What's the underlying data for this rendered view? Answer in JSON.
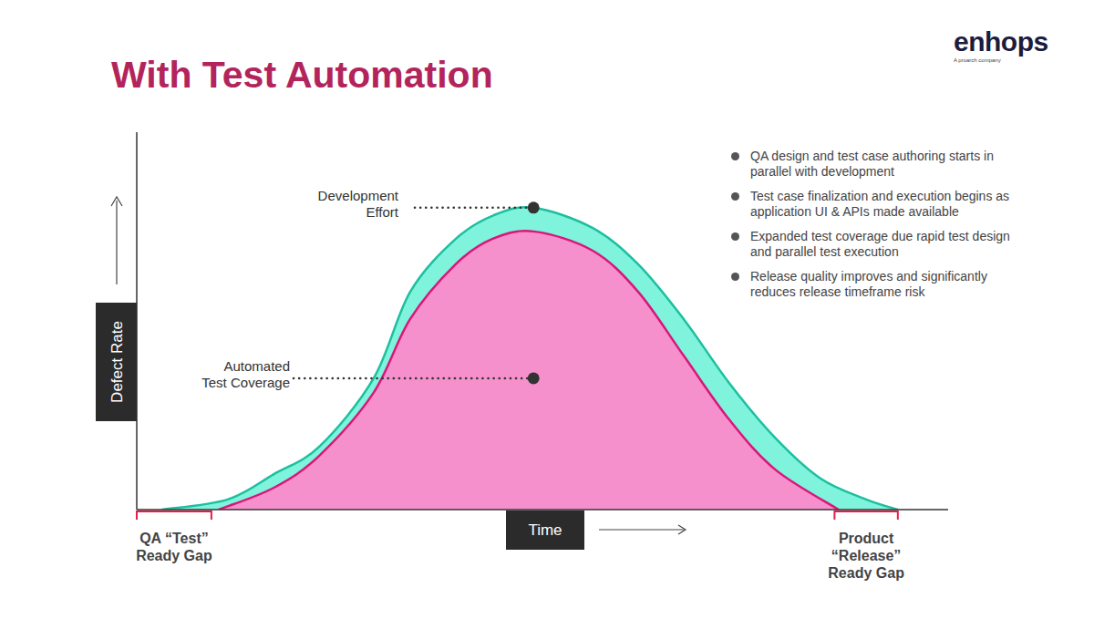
{
  "header": {
    "logo": "enhops",
    "tagline": "A proarch company"
  },
  "bullets": [
    "QA design and test case authoring starts in parallel with development",
    "Test case finalization and execution begins as application UI & APIs made available",
    "Expanded test coverage due rapid test design and parallel test execution",
    "Release quality improves and significantly reduces release timeframe risk"
  ],
  "chart_data": {
    "type": "area",
    "title": "With Test Automation",
    "x_label": "Time",
    "y_label": "Defect Rate",
    "xlim": [
      0,
      100
    ],
    "ylim": [
      0,
      100
    ],
    "tick_labels": false,
    "grid": false,
    "series": [
      {
        "color": "#7ff3dc",
        "x": [
          3.1,
          11.2,
          16.9,
          22.5,
          29.2,
          33.7,
          39.3,
          44,
          48.9,
          56.2,
          61.8,
          67.4,
          73,
          78.7,
          84.3,
          89.9,
          93.8
        ],
        "values": [
          0,
          2.7,
          9.4,
          16.7,
          34.8,
          57.7,
          71.7,
          78,
          80,
          74.6,
          65,
          50.5,
          33.6,
          19,
          8.2,
          2.7,
          0
        ]
      },
      {
        "color": "#f590cc",
        "x": [
          10.1,
          16.9,
          22.5,
          29.2,
          33.7,
          39.3,
          43.8,
          48.9,
          56.2,
          61.8,
          67.4,
          73,
          78.7,
          86.5
        ],
        "values": [
          0,
          5.8,
          14.3,
          31,
          50.5,
          65,
          71.7,
          73.7,
          68.6,
          57.7,
          40.8,
          23.9,
          10.6,
          0
        ]
      }
    ],
    "annotations": [
      {
        "text": [
          "Development",
          "Effort"
        ],
        "x": 48.9,
        "y": 80
      },
      {
        "text": [
          "Automated",
          "Test Coverage"
        ],
        "x": 48.9,
        "y": 34.8
      }
    ],
    "gaps": [
      {
        "label": [
          "QA “Test”",
          "Ready Gap"
        ],
        "from": 0,
        "to": 9.2
      },
      {
        "label": [
          "Product",
          "“Release”",
          "Ready Gap"
        ],
        "from": 86,
        "to": 93.8
      }
    ]
  }
}
